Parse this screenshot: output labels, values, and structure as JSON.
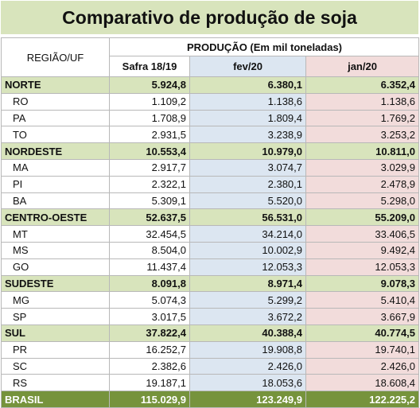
{
  "title": "Comparativo de produção de soja",
  "header": {
    "regiao": "REGIÃO/UF",
    "producao": "PRODUÇÃO (Em mil toneladas)",
    "cols": [
      "Safra 18/19",
      "fev/20",
      "jan/20"
    ]
  },
  "rows": [
    {
      "kind": "region",
      "name": "NORTE",
      "values": [
        "5.924,8",
        "6.380,1",
        "6.352,4"
      ]
    },
    {
      "kind": "state",
      "name": "RO",
      "values": [
        "1.109,2",
        "1.138,6",
        "1.138,6"
      ]
    },
    {
      "kind": "state",
      "name": "PA",
      "values": [
        "1.708,9",
        "1.809,4",
        "1.769,2"
      ]
    },
    {
      "kind": "state",
      "name": "TO",
      "values": [
        "2.931,5",
        "3.238,9",
        "3.253,2"
      ]
    },
    {
      "kind": "region",
      "name": "NORDESTE",
      "values": [
        "10.553,4",
        "10.979,0",
        "10.811,0"
      ]
    },
    {
      "kind": "state",
      "name": "MA",
      "values": [
        "2.917,7",
        "3.074,7",
        "3.029,9"
      ]
    },
    {
      "kind": "state",
      "name": "PI",
      "values": [
        "2.322,1",
        "2.380,1",
        "2.478,9"
      ]
    },
    {
      "kind": "state",
      "name": "BA",
      "values": [
        "5.309,1",
        "5.520,0",
        "5.298,0"
      ]
    },
    {
      "kind": "region",
      "name": "CENTRO-OESTE",
      "values": [
        "52.637,5",
        "56.531,0",
        "55.209,0"
      ]
    },
    {
      "kind": "state",
      "name": "MT",
      "values": [
        "32.454,5",
        "34.214,0",
        "33.406,5"
      ]
    },
    {
      "kind": "state",
      "name": "MS",
      "values": [
        "8.504,0",
        "10.002,9",
        "9.492,4"
      ]
    },
    {
      "kind": "state",
      "name": "GO",
      "values": [
        "11.437,4",
        "12.053,3",
        "12.053,3"
      ]
    },
    {
      "kind": "region",
      "name": "SUDESTE",
      "values": [
        "8.091,8",
        "8.971,4",
        "9.078,3"
      ]
    },
    {
      "kind": "state",
      "name": "MG",
      "values": [
        "5.074,3",
        "5.299,2",
        "5.410,4"
      ]
    },
    {
      "kind": "state",
      "name": "SP",
      "values": [
        "3.017,5",
        "3.672,2",
        "3.667,9"
      ]
    },
    {
      "kind": "region",
      "name": "SUL",
      "values": [
        "37.822,4",
        "40.388,4",
        "40.774,5"
      ]
    },
    {
      "kind": "state",
      "name": "PR",
      "values": [
        "16.252,7",
        "19.908,8",
        "19.740,1"
      ]
    },
    {
      "kind": "state",
      "name": "SC",
      "values": [
        "2.382,6",
        "2.426,0",
        "2.426,0"
      ]
    },
    {
      "kind": "state",
      "name": "RS",
      "values": [
        "19.187,1",
        "18.053,6",
        "18.608,4"
      ]
    },
    {
      "kind": "brasil",
      "name": "BRASIL",
      "values": [
        "115.029,9",
        "123.249,9",
        "122.225,2"
      ]
    }
  ],
  "colors": {
    "title_bg": "#d8e4bc",
    "region_bg": "#d8e4bc",
    "col2_bg": "#dce6f1",
    "col3_bg": "#f2dcdb",
    "total_bg": "#76933c"
  }
}
